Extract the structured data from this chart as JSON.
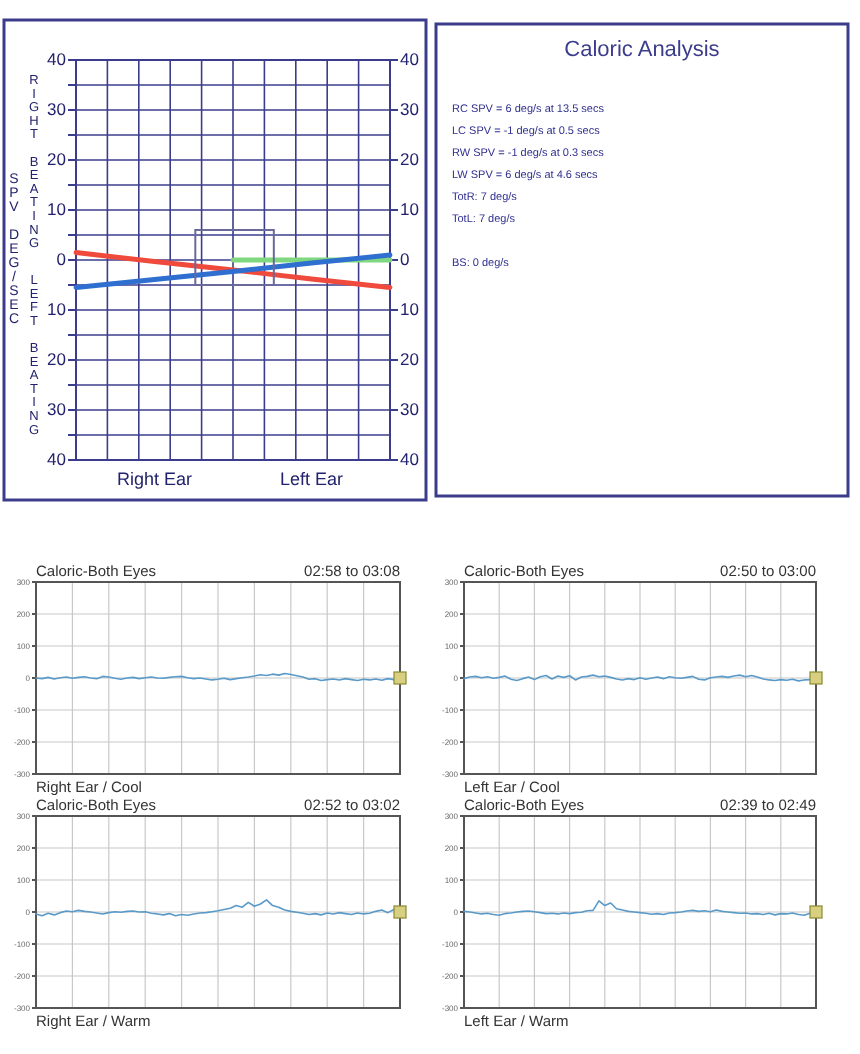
{
  "chart_data": [
    {
      "type": "line",
      "ylabel": "SPV DEG/SEC",
      "annotations": [
        "RIGHT BEATING",
        "LEFT BEATING"
      ],
      "categories": [
        null,
        "Right Ear",
        null,
        "Left Ear",
        null
      ],
      "ylim": [
        -40,
        40
      ],
      "yticks": [
        {
          "value": -40,
          "label": "40"
        },
        {
          "value": -35,
          "label": null
        },
        {
          "value": -30,
          "label": "30"
        },
        {
          "value": -25,
          "label": null
        },
        {
          "value": -20,
          "label": "20"
        },
        {
          "value": -15,
          "label": null
        },
        {
          "value": -10,
          "label": "10"
        },
        {
          "value": -5,
          "label": null
        },
        0,
        {
          "value": 5,
          "label": null
        },
        10,
        {
          "value": 15,
          "label": null
        },
        20,
        {
          "value": 25,
          "label": null
        },
        30,
        {
          "value": 35,
          "label": null
        },
        40
      ],
      "y2lim": [
        -40,
        40
      ],
      "y2ticks": [
        {
          "value": -40,
          "label": "40"
        },
        {
          "value": -30,
          "label": "30"
        },
        {
          "value": -20,
          "label": "20"
        },
        {
          "value": -10,
          "label": "10"
        },
        0,
        10,
        20,
        30,
        40
      ],
      "grid": true,
      "series": [
        {
          "color": "#7fd87f",
          "values": [
            null,
            null,
            0,
            0,
            0
          ]
        },
        {
          "color": "#f04a3c",
          "values": [
            1.5,
            -0.3,
            -2,
            -3.8,
            -5.5
          ]
        },
        {
          "color": "#2f6fd0",
          "values": [
            -5.5,
            -3.9,
            -2.3,
            -0.6,
            1
          ]
        }
      ]
    },
    {
      "type": "other",
      "title": "Caloric Analysis",
      "annotations": [
        "RC SPV =  6 deg/s  at 13.5 secs",
        "LC SPV =  -1 deg/s  at 0.5 secs",
        "RW SPV =  -1 deg/s  at 0.3 secs",
        "LW SPV =  6 deg/s  at 4.6 secs",
        "TotR: 7 deg/s",
        "TotL: 7 deg/s",
        "BS: 0 deg/s"
      ]
    },
    {
      "type": "line",
      "title": "Caloric-Both Eyes",
      "subtitle": "02:58 to 03:08",
      "xlabel": "Right Ear / Cool",
      "ylim": [
        -300,
        300
      ],
      "yticks": [
        -300,
        -200,
        -100,
        0,
        100,
        200,
        300
      ],
      "grid": true,
      "categories": [
        null,
        null,
        null,
        null,
        null,
        null,
        null,
        null,
        null,
        null,
        null,
        null,
        null,
        null,
        null,
        null,
        null,
        null,
        null,
        null,
        null,
        null,
        null,
        null,
        null,
        null,
        null,
        null,
        null,
        null,
        null,
        null,
        null,
        null,
        null,
        null,
        null,
        null,
        null,
        null,
        null,
        null,
        null,
        null,
        null,
        null,
        null,
        null,
        null,
        null,
        null,
        null,
        null,
        null,
        null,
        null,
        null,
        null,
        null,
        null,
        null
      ],
      "series": [
        {
          "color": "#5a9ac8",
          "values": [
            0,
            -2,
            2,
            -3,
            1,
            3,
            -1,
            2,
            4,
            0,
            -2,
            5,
            3,
            -1,
            -4,
            0,
            2,
            -2,
            1,
            3,
            0,
            -1,
            2,
            4,
            5,
            1,
            -2,
            0,
            -3,
            -6,
            -4,
            -1,
            -5,
            -2,
            1,
            3,
            6,
            10,
            8,
            12,
            9,
            14,
            11,
            7,
            3,
            -4,
            -2,
            -8,
            -5,
            -3,
            -6,
            -2,
            -5,
            -8,
            -4,
            -6,
            -3,
            -7,
            -2,
            -5,
            -3
          ]
        }
      ]
    },
    {
      "type": "line",
      "title": "Caloric-Both Eyes",
      "subtitle": "02:50 to 03:00",
      "xlabel": "Left Ear / Cool",
      "ylim": [
        -300,
        300
      ],
      "yticks": [
        -300,
        -200,
        -100,
        0,
        100,
        200,
        300
      ],
      "grid": true,
      "categories": [
        null,
        null,
        null,
        null,
        null,
        null,
        null,
        null,
        null,
        null,
        null,
        null,
        null,
        null,
        null,
        null,
        null,
        null,
        null,
        null,
        null,
        null,
        null,
        null,
        null,
        null,
        null,
        null,
        null,
        null,
        null,
        null,
        null,
        null,
        null,
        null,
        null,
        null,
        null,
        null,
        null,
        null,
        null,
        null,
        null,
        null,
        null,
        null,
        null,
        null,
        null,
        null,
        null,
        null,
        null,
        null,
        null,
        null,
        null,
        null,
        null
      ],
      "series": [
        {
          "color": "#5a9ac8",
          "values": [
            -2,
            3,
            5,
            1,
            4,
            -1,
            2,
            6,
            -4,
            -8,
            -2,
            3,
            -5,
            4,
            8,
            -3,
            6,
            2,
            7,
            -6,
            3,
            5,
            9,
            4,
            6,
            2,
            -3,
            -6,
            -2,
            -5,
            1,
            -4,
            0,
            3,
            -2,
            4,
            1,
            -1,
            2,
            5,
            -4,
            -6,
            1,
            3,
            5,
            2,
            6,
            9,
            4,
            8,
            3,
            -3,
            -6,
            -8,
            -5,
            -7,
            -4,
            -9,
            -6,
            -5,
            -3
          ]
        }
      ]
    },
    {
      "type": "line",
      "title": "Caloric-Both Eyes",
      "subtitle": "02:52 to 03:02",
      "xlabel": "Right Ear / Warm",
      "ylim": [
        -300,
        300
      ],
      "yticks": [
        -300,
        -200,
        -100,
        0,
        100,
        200,
        300
      ],
      "grid": true,
      "categories": [
        null,
        null,
        null,
        null,
        null,
        null,
        null,
        null,
        null,
        null,
        null,
        null,
        null,
        null,
        null,
        null,
        null,
        null,
        null,
        null,
        null,
        null,
        null,
        null,
        null,
        null,
        null,
        null,
        null,
        null,
        null,
        null,
        null,
        null,
        null,
        null,
        null,
        null,
        null,
        null,
        null,
        null,
        null,
        null,
        null,
        null,
        null,
        null,
        null,
        null,
        null,
        null,
        null,
        null,
        null,
        null,
        null,
        null,
        null,
        null,
        null
      ],
      "series": [
        {
          "color": "#5a9ac8",
          "values": [
            -6,
            -12,
            -4,
            -9,
            -2,
            3,
            1,
            5,
            2,
            0,
            -3,
            -6,
            -2,
            1,
            -1,
            2,
            3,
            0,
            1,
            -4,
            -6,
            -9,
            -5,
            -12,
            -8,
            -10,
            -6,
            -3,
            -2,
            1,
            4,
            8,
            12,
            20,
            15,
            30,
            18,
            25,
            38,
            20,
            15,
            6,
            2,
            -1,
            -4,
            -8,
            -5,
            -9,
            -3,
            -6,
            -2,
            -5,
            -8,
            -3,
            -6,
            -4,
            2,
            6,
            -2,
            8,
            4
          ]
        }
      ]
    },
    {
      "type": "line",
      "title": "Caloric-Both Eyes",
      "subtitle": "02:39 to 02:49",
      "xlabel": "Left Ear / Warm",
      "ylim": [
        -300,
        300
      ],
      "yticks": [
        -300,
        -200,
        -100,
        0,
        100,
        200,
        300
      ],
      "grid": true,
      "categories": [
        null,
        null,
        null,
        null,
        null,
        null,
        null,
        null,
        null,
        null,
        null,
        null,
        null,
        null,
        null,
        null,
        null,
        null,
        null,
        null,
        null,
        null,
        null,
        null,
        null,
        null,
        null,
        null,
        null,
        null,
        null,
        null,
        null,
        null,
        null,
        null,
        null,
        null,
        null,
        null,
        null,
        null,
        null,
        null,
        null,
        null,
        null,
        null,
        null,
        null,
        null,
        null,
        null,
        null,
        null,
        null,
        null,
        null,
        null,
        null,
        null
      ],
      "series": [
        {
          "color": "#5a9ac8",
          "values": [
            2,
            0,
            -3,
            -6,
            -4,
            -8,
            -10,
            -5,
            -3,
            0,
            2,
            3,
            1,
            -2,
            -5,
            -4,
            -6,
            -3,
            -5,
            -2,
            -1,
            4,
            5,
            35,
            20,
            28,
            10,
            6,
            2,
            0,
            -2,
            -4,
            -7,
            -5,
            -8,
            -3,
            -2,
            0,
            3,
            5,
            2,
            4,
            1,
            6,
            2,
            0,
            -2,
            -4,
            -3,
            -6,
            -5,
            -8,
            -4,
            -9,
            -5,
            -6,
            -3,
            -8,
            -10,
            -4,
            2
          ]
        }
      ]
    }
  ]
}
